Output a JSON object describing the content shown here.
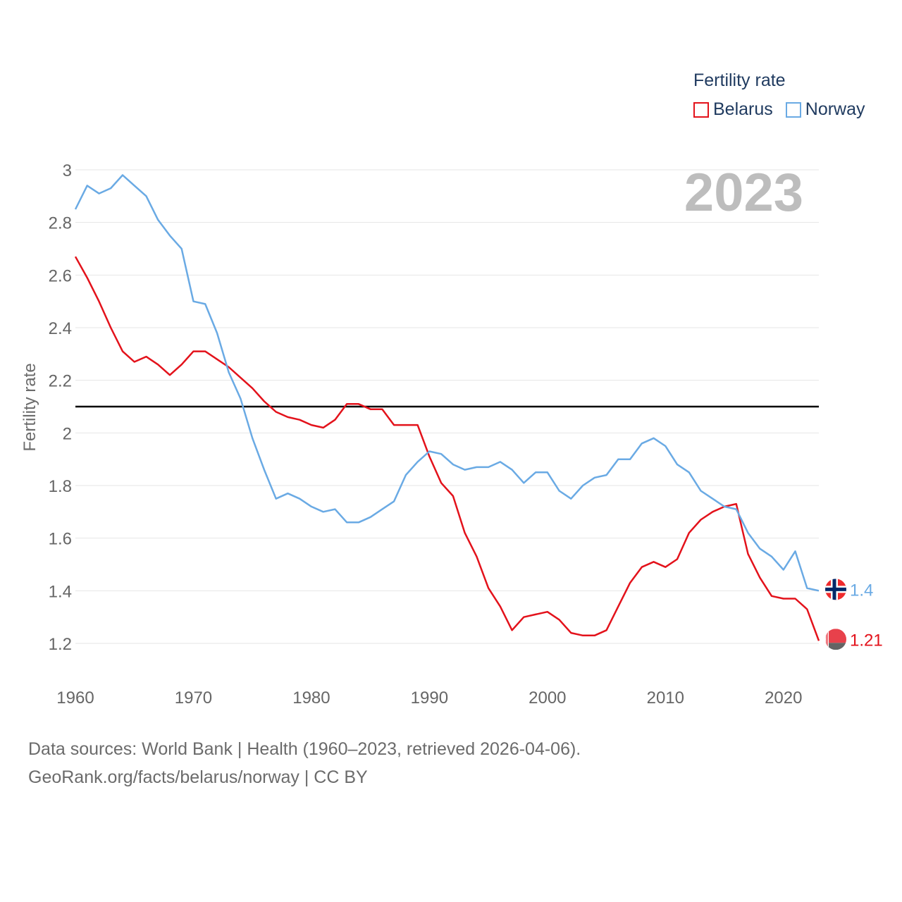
{
  "legend": {
    "title": "Fertility rate",
    "items": [
      {
        "label": "Belarus",
        "color": "#e3121b"
      },
      {
        "label": "Norway",
        "color": "#6aaae4"
      }
    ]
  },
  "year_label": "2023",
  "footer": {
    "line1": "Data sources: World Bank | Health (1960–2023, retrieved 2026-04-06).",
    "line2": "GeoRank.org/facts/belarus/norway | CC BY"
  },
  "chart_data": {
    "type": "line",
    "ylabel": "Fertility rate",
    "xlabel": "",
    "xlim": [
      1960,
      2023
    ],
    "ylim": [
      1.1,
      3.0
    ],
    "x_ticks": [
      "1960",
      "1970",
      "1980",
      "1990",
      "2000",
      "2010",
      "2020"
    ],
    "y_ticks": [
      "1.2",
      "1.4",
      "1.6",
      "1.8",
      "2",
      "2.2",
      "2.4",
      "2.6",
      "2.8",
      "3"
    ],
    "reference_line": {
      "value": 2.1,
      "color": "#000000"
    },
    "x": [
      1960,
      1961,
      1962,
      1963,
      1964,
      1965,
      1966,
      1967,
      1968,
      1969,
      1970,
      1971,
      1972,
      1973,
      1974,
      1975,
      1976,
      1977,
      1978,
      1979,
      1980,
      1981,
      1982,
      1983,
      1984,
      1985,
      1986,
      1987,
      1988,
      1989,
      1990,
      1991,
      1992,
      1993,
      1994,
      1995,
      1996,
      1997,
      1998,
      1999,
      2000,
      2001,
      2002,
      2003,
      2004,
      2005,
      2006,
      2007,
      2008,
      2009,
      2010,
      2011,
      2012,
      2013,
      2014,
      2015,
      2016,
      2017,
      2018,
      2019,
      2020,
      2021,
      2022,
      2023
    ],
    "series": [
      {
        "name": "Belarus",
        "color": "#e3121b",
        "end_label": "1.21",
        "values": [
          2.67,
          2.59,
          2.5,
          2.4,
          2.31,
          2.27,
          2.29,
          2.26,
          2.22,
          2.26,
          2.31,
          2.31,
          2.28,
          2.25,
          2.21,
          2.17,
          2.12,
          2.08,
          2.06,
          2.05,
          2.03,
          2.02,
          2.05,
          2.11,
          2.11,
          2.09,
          2.09,
          2.03,
          2.03,
          2.03,
          1.91,
          1.81,
          1.76,
          1.62,
          1.53,
          1.41,
          1.34,
          1.25,
          1.3,
          1.31,
          1.32,
          1.29,
          1.24,
          1.23,
          1.23,
          1.25,
          1.34,
          1.43,
          1.49,
          1.51,
          1.49,
          1.52,
          1.62,
          1.67,
          1.7,
          1.72,
          1.73,
          1.54,
          1.45,
          1.38,
          1.37,
          1.37,
          1.33,
          1.21
        ]
      },
      {
        "name": "Norway",
        "color": "#6aaae4",
        "end_label": "1.4",
        "values": [
          2.85,
          2.94,
          2.91,
          2.93,
          2.98,
          2.94,
          2.9,
          2.81,
          2.75,
          2.7,
          2.5,
          2.49,
          2.38,
          2.23,
          2.13,
          1.98,
          1.86,
          1.75,
          1.77,
          1.75,
          1.72,
          1.7,
          1.71,
          1.66,
          1.66,
          1.68,
          1.71,
          1.74,
          1.84,
          1.89,
          1.93,
          1.92,
          1.88,
          1.86,
          1.87,
          1.87,
          1.89,
          1.86,
          1.81,
          1.85,
          1.85,
          1.78,
          1.75,
          1.8,
          1.83,
          1.84,
          1.9,
          1.9,
          1.96,
          1.98,
          1.95,
          1.88,
          1.85,
          1.78,
          1.75,
          1.72,
          1.71,
          1.62,
          1.56,
          1.53,
          1.48,
          1.55,
          1.41,
          1.4
        ]
      }
    ]
  }
}
